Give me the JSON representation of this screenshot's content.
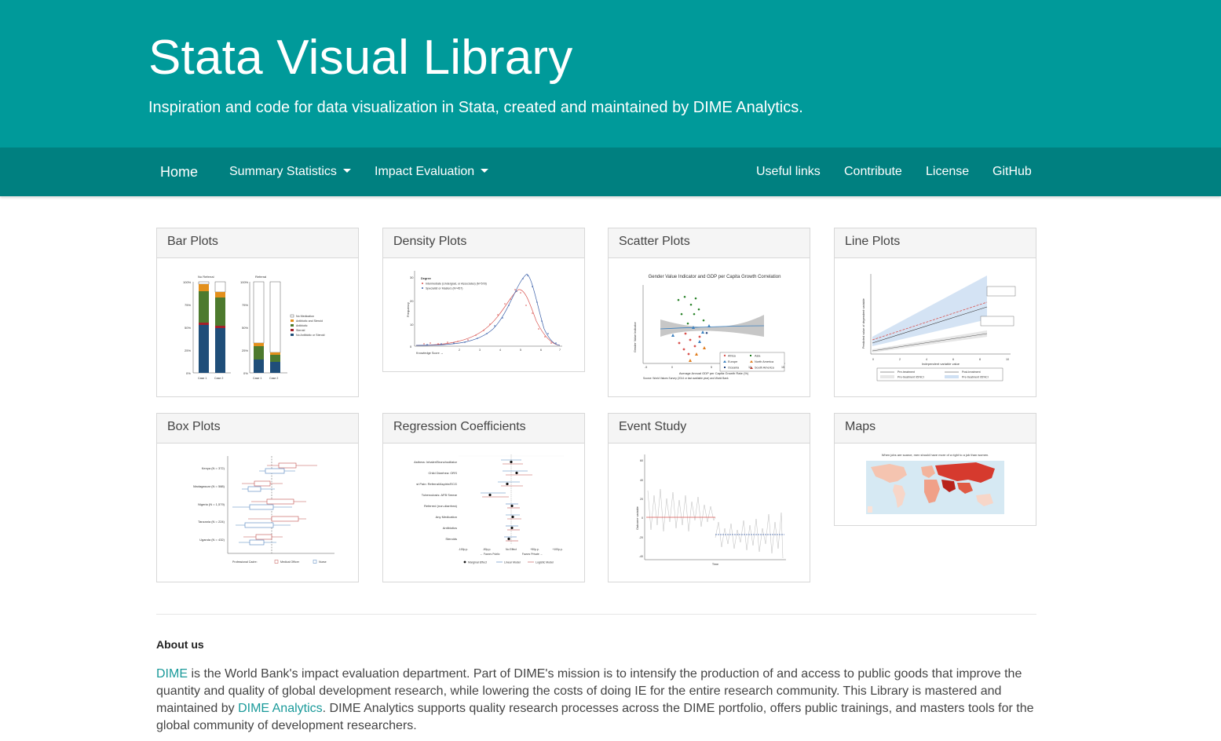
{
  "header": {
    "title": "Stata Visual Library",
    "subtitle": "Inspiration and code for data visualization in Stata, created and maintained by DIME Analytics."
  },
  "nav": {
    "home": "Home",
    "summary_statistics": "Summary Statistics",
    "impact_evaluation": "Impact Evaluation",
    "useful_links": "Useful links",
    "contribute": "Contribute",
    "license": "License",
    "github": "GitHub"
  },
  "cards": [
    {
      "title": "Bar Plots"
    },
    {
      "title": "Density Plots"
    },
    {
      "title": "Scatter Plots"
    },
    {
      "title": "Line Plots"
    },
    {
      "title": "Box Plots"
    },
    {
      "title": "Regression Coefficients"
    },
    {
      "title": "Event Study"
    },
    {
      "title": "Maps"
    }
  ],
  "thumbnails": {
    "bar": {
      "panel_left": "No Referral",
      "panel_right": "Referral",
      "yticks": [
        "100%",
        "75%",
        "50%",
        "25%",
        "0%"
      ],
      "legend": [
        "No Medication",
        "Antibiotic and Steroid",
        "Antibiotic",
        "Steroid",
        "No Antibiotic or Steroid"
      ],
      "xlabels": [
        "Case 1",
        "Case 2",
        "Case 1",
        "Case 2"
      ]
    },
    "density": {
      "legend_title": "Degree",
      "legend": [
        "Intermediate (Undergrad, or Associates) (N=578)",
        "Specialist or Masters (N=457)"
      ],
      "ylabel": "Frequency",
      "xlabel": "Knowledge Score →"
    },
    "scatter": {
      "title": "Gender Value Indicator and GDP per Capita Growth Correlation",
      "ylabel": "Gender Value Indicator",
      "xlabel": "Average Annual GDP per Capita Growth Rate (%)",
      "source": "Source: World Values Survey (2014 or last available year) and World Bank",
      "legend": [
        "Africa",
        "Asia",
        "Europe",
        "North America",
        "Oceania",
        "South America"
      ]
    },
    "line": {
      "ylabel": "Predicted value of dependent variable",
      "xlabel": "Independent variable value",
      "legend": [
        "Pre-treatment",
        "Post-treatment",
        "Pre-treatment 95%CI",
        "Pre-treatment 95%CI"
      ]
    },
    "box": {
      "rows": [
        "Kenya (N = 372)",
        "Madagascar (N = 588)",
        "Nigeria (N = 1,579)",
        "Tanzania (N = 224)",
        "Uganda (N = 432)"
      ],
      "legend_label": "Professional Cadre:",
      "legend": [
        "Medical Officer",
        "Nurse"
      ]
    },
    "regression": {
      "rows": [
        "Asthma: Inhaler/Bronchodilator",
        "Child Diarrhea: ORS",
        "st Pain: Referral/Aspirin/ECG",
        "Tuberculosis: AFB Smear",
        "Referred (non-diarrhea)",
        "Any Medication",
        "Antibiotics",
        "Steroids"
      ],
      "xticks": [
        "-100p.p.",
        "-50p.p.",
        "No Effect",
        "+50p.p.",
        "+100p.p."
      ],
      "favors": [
        "← Favors Public",
        "Favors Private →"
      ],
      "legend": [
        "Marginal Effect",
        "Linear Model",
        "Logistic Model"
      ]
    },
    "event": {
      "ylabel": "Outcome variable",
      "xlabel": "Time",
      "yticks": [
        "60",
        "40",
        "20",
        "0",
        "-20",
        "-40"
      ]
    },
    "maps": {
      "title": "When jobs are scarce, men should have more of a right to a job than women."
    }
  },
  "about": {
    "title": "About us",
    "dime_link": "DIME",
    "text1": " is the World Bank's impact evaluation department. Part of DIME's mission is to intensify the production of and access to public goods that improve the quantity and quality of global development research, while lowering the costs of doing IE for the entire research community. This Library is mastered and maintained by ",
    "analytics_link": "DIME Analytics",
    "text2": ". DIME Analytics supports quality research processes across the DIME portfolio, offers public trainings, and masters tools for the global community of development researchers."
  },
  "colors": {
    "hero": "#009a9a",
    "navbar": "#008080",
    "link": "#1a9a9a"
  }
}
